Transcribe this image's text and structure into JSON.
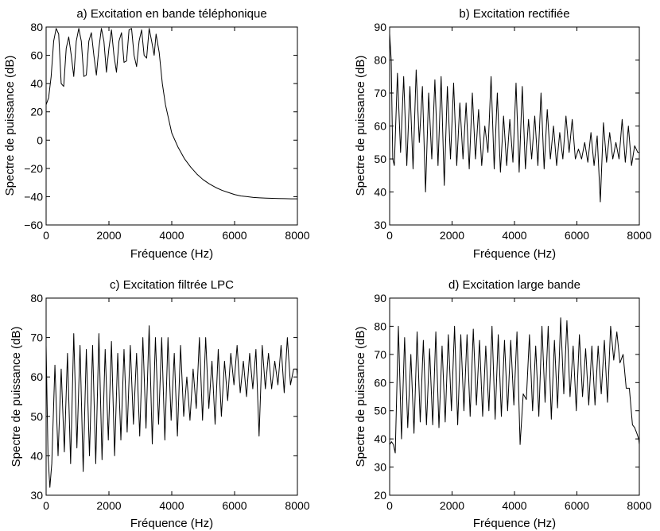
{
  "chart_data": [
    {
      "id": "a",
      "type": "line",
      "title": "a) Excitation en bande téléphonique",
      "xlabel": "Fréquence (Hz)",
      "ylabel": "Spectre de puissance (dB)",
      "xlim": [
        0,
        8000
      ],
      "ylim": [
        -60,
        80
      ],
      "xticks": [
        0,
        2000,
        4000,
        6000,
        8000
      ],
      "yticks": [
        -60,
        -40,
        -20,
        0,
        20,
        40,
        60,
        80
      ],
      "x": [
        0,
        80,
        160,
        240,
        320,
        400,
        480,
        560,
        640,
        720,
        800,
        880,
        960,
        1040,
        1120,
        1200,
        1280,
        1360,
        1440,
        1520,
        1600,
        1680,
        1760,
        1840,
        1920,
        2000,
        2080,
        2160,
        2240,
        2320,
        2400,
        2480,
        2560,
        2640,
        2720,
        2800,
        2880,
        2960,
        3040,
        3120,
        3200,
        3280,
        3360,
        3440,
        3500,
        3600,
        3700,
        3800,
        3900,
        4000,
        4200,
        4400,
        4600,
        4800,
        5000,
        5200,
        5400,
        5600,
        5800,
        6000,
        6200,
        6400,
        6600,
        6800,
        7000,
        7200,
        7400,
        7600,
        7800,
        8000
      ],
      "series": [
        {
          "name": "a",
          "values": [
            25,
            30,
            45,
            70,
            79,
            75,
            40,
            38,
            65,
            73,
            60,
            45,
            70,
            79,
            70,
            45,
            46,
            70,
            76,
            60,
            46,
            65,
            79,
            70,
            48,
            65,
            78,
            60,
            48,
            70,
            76,
            55,
            56,
            78,
            79,
            60,
            52,
            70,
            78,
            60,
            58,
            79,
            70,
            60,
            75,
            62,
            40,
            25,
            15,
            5,
            -5,
            -13,
            -19,
            -24,
            -28,
            -31,
            -33.5,
            -35.5,
            -37,
            -38.5,
            -39.5,
            -40,
            -40.5,
            -40.8,
            -41,
            -41.2,
            -41.3,
            -41.4,
            -41.5,
            -41.5
          ]
        }
      ]
    },
    {
      "id": "b",
      "type": "line",
      "title": "b) Excitation rectifiée",
      "xlabel": "Fréquence (Hz)",
      "ylabel": "Spectre de puissance (dB)",
      "xlim": [
        0,
        8000
      ],
      "ylim": [
        30,
        90
      ],
      "xticks": [
        0,
        2000,
        4000,
        6000,
        8000
      ],
      "yticks": [
        30,
        40,
        50,
        60,
        70,
        80,
        90
      ],
      "x": [
        0,
        50,
        100,
        150,
        250,
        350,
        450,
        550,
        650,
        750,
        850,
        950,
        1050,
        1150,
        1250,
        1350,
        1450,
        1550,
        1650,
        1750,
        1850,
        1950,
        2050,
        2150,
        2250,
        2350,
        2450,
        2550,
        2650,
        2750,
        2850,
        2950,
        3050,
        3150,
        3250,
        3350,
        3450,
        3550,
        3650,
        3750,
        3850,
        3950,
        4050,
        4150,
        4250,
        4350,
        4450,
        4550,
        4650,
        4750,
        4850,
        4950,
        5050,
        5150,
        5250,
        5350,
        5450,
        5550,
        5650,
        5750,
        5850,
        5950,
        6050,
        6150,
        6250,
        6350,
        6450,
        6550,
        6650,
        6750,
        6850,
        6950,
        7050,
        7150,
        7250,
        7350,
        7450,
        7550,
        7650,
        7750,
        7850,
        7950,
        8000
      ],
      "series": [
        {
          "name": "b",
          "values": [
            88,
            80,
            50,
            48,
            76,
            52,
            75,
            48,
            72,
            47,
            77,
            55,
            72,
            40,
            70,
            50,
            74,
            48,
            75,
            42,
            72,
            50,
            73,
            48,
            67,
            50,
            67,
            47,
            70,
            50,
            65,
            48,
            60,
            52,
            75,
            47,
            70,
            46,
            63,
            48,
            62,
            49,
            73,
            46,
            72,
            47,
            62,
            50,
            63,
            48,
            70,
            47,
            65,
            50,
            60,
            48,
            58,
            50,
            63,
            52,
            62,
            50,
            53,
            50,
            55,
            49,
            58,
            48,
            57,
            37,
            61,
            49,
            58,
            50,
            55,
            50,
            62,
            49,
            60,
            48,
            54,
            52,
            52
          ]
        }
      ]
    },
    {
      "id": "c",
      "type": "line",
      "title": "c) Excitation filtrée LPC",
      "xlabel": "Fréquence (Hz)",
      "ylabel": "Spectre de puissance (dB)",
      "xlim": [
        0,
        8000
      ],
      "ylim": [
        30,
        80
      ],
      "xticks": [
        0,
        2000,
        4000,
        6000,
        8000
      ],
      "yticks": [
        30,
        40,
        50,
        60,
        70,
        80
      ],
      "x": [
        0,
        60,
        120,
        180,
        280,
        380,
        480,
        580,
        680,
        780,
        880,
        980,
        1080,
        1180,
        1280,
        1380,
        1480,
        1580,
        1680,
        1780,
        1880,
        1980,
        2080,
        2180,
        2280,
        2380,
        2480,
        2580,
        2680,
        2780,
        2880,
        2980,
        3080,
        3180,
        3280,
        3380,
        3480,
        3580,
        3680,
        3780,
        3880,
        3980,
        4080,
        4180,
        4280,
        4380,
        4480,
        4580,
        4680,
        4780,
        4880,
        4980,
        5080,
        5180,
        5280,
        5380,
        5480,
        5580,
        5680,
        5780,
        5880,
        5980,
        6080,
        6180,
        6280,
        6380,
        6480,
        6580,
        6680,
        6780,
        6880,
        6980,
        7080,
        7180,
        7280,
        7380,
        7480,
        7580,
        7680,
        7780,
        7880,
        7980,
        8000
      ],
      "series": [
        {
          "name": "c",
          "values": [
            68,
            40,
            32,
            38,
            63,
            40,
            62,
            41,
            66,
            38,
            71,
            42,
            68,
            36,
            67,
            40,
            68,
            38,
            71,
            39,
            67,
            44,
            69,
            40,
            66,
            44,
            67,
            46,
            68,
            48,
            66,
            45,
            70,
            47,
            73,
            43,
            70,
            48,
            70,
            44,
            70,
            49,
            66,
            45,
            68,
            50,
            60,
            49,
            62,
            52,
            70,
            49,
            70,
            52,
            64,
            48,
            67,
            50,
            64,
            54,
            66,
            58,
            68,
            56,
            64,
            55,
            66,
            57,
            67,
            45,
            68,
            57,
            66,
            57,
            64,
            58,
            68,
            56,
            70,
            58,
            62,
            62,
            60
          ]
        }
      ]
    },
    {
      "id": "d",
      "type": "line",
      "title": "d) Excitation large bande",
      "xlabel": "Fréquence (Hz)",
      "ylabel": "Spectre de puissance (dB)",
      "xlim": [
        0,
        8000
      ],
      "ylim": [
        20,
        90
      ],
      "xticks": [
        0,
        2000,
        4000,
        6000,
        8000
      ],
      "yticks": [
        20,
        30,
        40,
        50,
        60,
        70,
        80,
        90
      ],
      "x": [
        0,
        60,
        120,
        180,
        280,
        380,
        480,
        580,
        680,
        780,
        880,
        980,
        1080,
        1180,
        1280,
        1380,
        1480,
        1580,
        1680,
        1780,
        1880,
        1980,
        2080,
        2180,
        2280,
        2380,
        2480,
        2580,
        2680,
        2780,
        2880,
        2980,
        3080,
        3180,
        3280,
        3380,
        3480,
        3580,
        3680,
        3780,
        3880,
        3980,
        4080,
        4180,
        4280,
        4380,
        4480,
        4580,
        4680,
        4780,
        4880,
        4980,
        5080,
        5180,
        5280,
        5380,
        5480,
        5580,
        5680,
        5780,
        5880,
        5980,
        6080,
        6180,
        6280,
        6380,
        6480,
        6580,
        6680,
        6780,
        6880,
        6980,
        7080,
        7180,
        7280,
        7380,
        7480,
        7580,
        7680,
        7780,
        7850,
        7920,
        7980,
        8000
      ],
      "series": [
        {
          "name": "d",
          "values": [
            38,
            39,
            38,
            35,
            80,
            40,
            76,
            44,
            70,
            42,
            78,
            46,
            75,
            45,
            72,
            45,
            78,
            44,
            73,
            46,
            77,
            50,
            80,
            45,
            77,
            50,
            77,
            48,
            79,
            52,
            75,
            48,
            73,
            50,
            80,
            47,
            77,
            48,
            75,
            50,
            75,
            52,
            78,
            38,
            56,
            54,
            77,
            50,
            73,
            48,
            80,
            53,
            80,
            47,
            75,
            51,
            83,
            56,
            82,
            55,
            73,
            50,
            77,
            55,
            72,
            52,
            73,
            52,
            73,
            56,
            75,
            53,
            80,
            68,
            78,
            67,
            70,
            58,
            58,
            45,
            44,
            42,
            40,
            38
          ]
        }
      ]
    }
  ]
}
